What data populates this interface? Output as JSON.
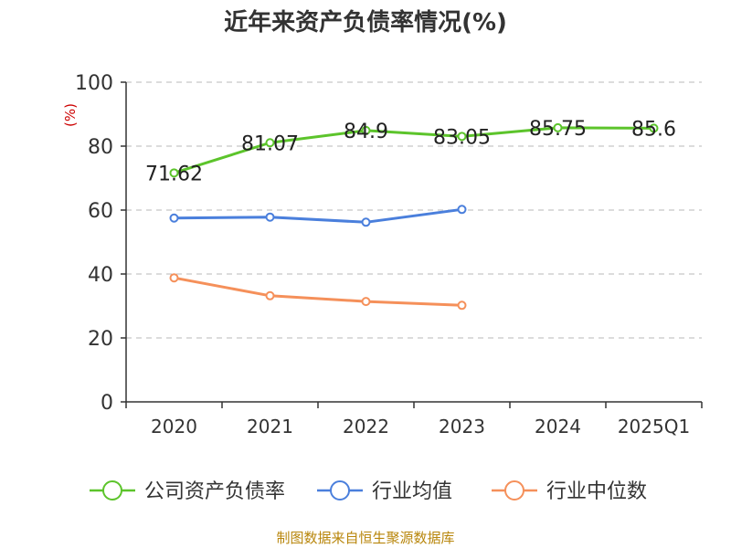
{
  "chart_data": {
    "type": "line",
    "title": "近年来资产负债率情况(%)",
    "ylabel": "(%)",
    "categories": [
      "2020",
      "2021",
      "2022",
      "2023",
      "2024",
      "2025Q1"
    ],
    "ylim": [
      0,
      100
    ],
    "yticks": [
      0,
      20,
      40,
      60,
      80,
      100
    ],
    "grid": true,
    "legend_position": "bottom",
    "series": [
      {
        "name": "公司资产负债率",
        "color": "#5cc42b",
        "values": [
          71.62,
          81.07,
          84.9,
          83.05,
          85.75,
          85.6
        ],
        "labels": [
          "71.62",
          "81.07",
          "84.9",
          "83.05",
          "85.75",
          "85.6"
        ]
      },
      {
        "name": "行业均值",
        "color": "#4a7fdc",
        "values": [
          57.5,
          57.8,
          56.2,
          60.2,
          null,
          null
        ]
      },
      {
        "name": "行业中位数",
        "color": "#f5905a",
        "values": [
          38.8,
          33.2,
          31.4,
          30.2,
          null,
          null
        ]
      }
    ]
  },
  "footer": {
    "source": "制图数据来自恒生聚源数据库"
  }
}
